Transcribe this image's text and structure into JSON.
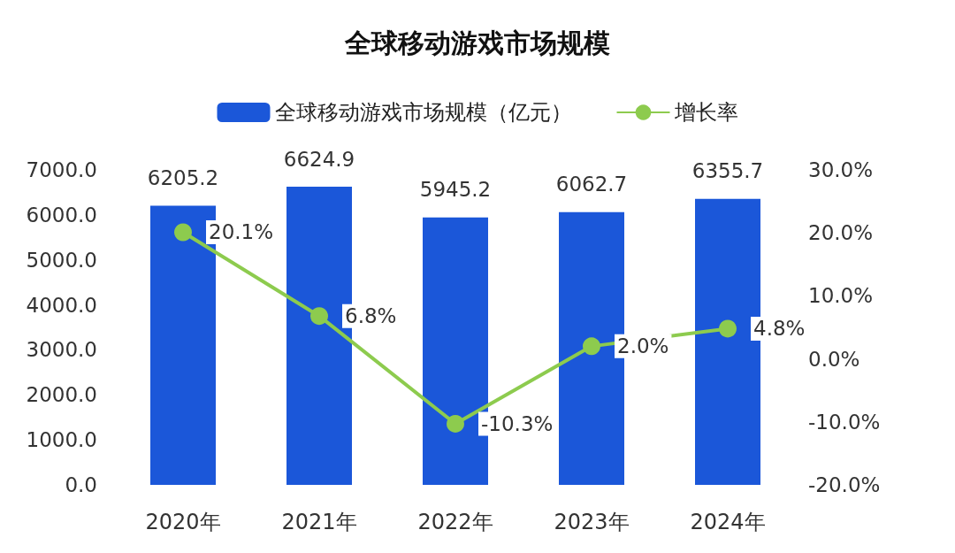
{
  "chart_data": {
    "type": "bar",
    "title": "全球移动游戏市场规模",
    "categories": [
      "2020年",
      "2021年",
      "2022年",
      "2023年",
      "2024年"
    ],
    "series": [
      {
        "name": "全球移动游戏市场规模（亿元）",
        "color": "#1b57d9",
        "values": [
          6205.2,
          6624.9,
          5945.2,
          6062.7,
          6355.7
        ],
        "value_labels": [
          "6205.2",
          "6624.9",
          "5945.2",
          "6062.7",
          "6355.7"
        ]
      },
      {
        "name": "增长率",
        "type": "line",
        "axis": "y2",
        "color": "#8dcb4e",
        "values": [
          20.1,
          6.8,
          -10.3,
          2.0,
          4.8
        ],
        "value_labels": [
          "20.1%",
          "6.8%",
          "-10.3%",
          "2.0%",
          "4.8%"
        ]
      }
    ],
    "ylim": [
      0,
      7000
    ],
    "yticks": [
      {
        "value": 0,
        "label": "0.0"
      },
      {
        "value": 1000,
        "label": "1000.0"
      },
      {
        "value": 2000,
        "label": "2000.0"
      },
      {
        "value": 3000,
        "label": "3000.0"
      },
      {
        "value": 4000,
        "label": "4000.0"
      },
      {
        "value": 5000,
        "label": "5000.0"
      },
      {
        "value": 6000,
        "label": "6000.0"
      },
      {
        "value": 7000,
        "label": "7000.0"
      }
    ],
    "y2lim": [
      -20,
      30
    ],
    "y2ticks": [
      {
        "value": -20,
        "label": "-20.0%"
      },
      {
        "value": -10,
        "label": "-10.0%"
      },
      {
        "value": 0,
        "label": "0.0%"
      },
      {
        "value": 10,
        "label": "10.0%"
      },
      {
        "value": 20,
        "label": "20.0%"
      },
      {
        "value": 30,
        "label": "30.0%"
      }
    ],
    "marker": "circle",
    "line_style": "solid",
    "legend": "top",
    "grid": false
  }
}
